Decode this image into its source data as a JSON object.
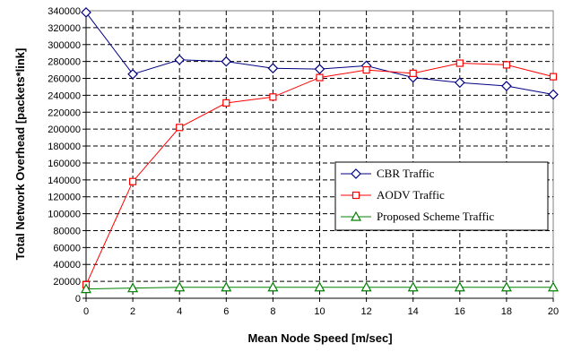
{
  "chart_data": {
    "type": "line",
    "title": "",
    "xlabel": "Mean Node Speed [m/sec]",
    "ylabel": "Total Network Overhead [packets*link]",
    "x": [
      0,
      2,
      4,
      6,
      8,
      10,
      12,
      14,
      16,
      18,
      20
    ],
    "xlim": [
      0,
      20
    ],
    "ylim": [
      0,
      340000
    ],
    "xticks": [
      "0",
      "2",
      "4",
      "6",
      "8",
      "10",
      "12",
      "14",
      "16",
      "18",
      "20"
    ],
    "yticks": [
      "0",
      "20000",
      "40000",
      "60000",
      "80000",
      "100000",
      "120000",
      "140000",
      "160000",
      "180000",
      "200000",
      "220000",
      "240000",
      "260000",
      "280000",
      "300000",
      "320000",
      "340000"
    ],
    "grid": true,
    "legend": "center-right",
    "series": [
      {
        "name": "CBR Traffic",
        "color": "#000080",
        "marker": "diamond",
        "values": [
          338000,
          265000,
          282000,
          280000,
          272000,
          271000,
          275000,
          261000,
          255000,
          251000,
          241000
        ]
      },
      {
        "name": "AODV Traffic",
        "color": "#ff0000",
        "marker": "square",
        "values": [
          16000,
          138000,
          202000,
          231000,
          238000,
          261000,
          270000,
          266000,
          278000,
          276000,
          262000
        ]
      },
      {
        "name": "Proposed Scheme Traffic",
        "color": "#008000",
        "marker": "triangle",
        "values": [
          11000,
          12000,
          13000,
          13000,
          13000,
          13000,
          13000,
          13000,
          13000,
          13000,
          13000
        ]
      }
    ]
  }
}
